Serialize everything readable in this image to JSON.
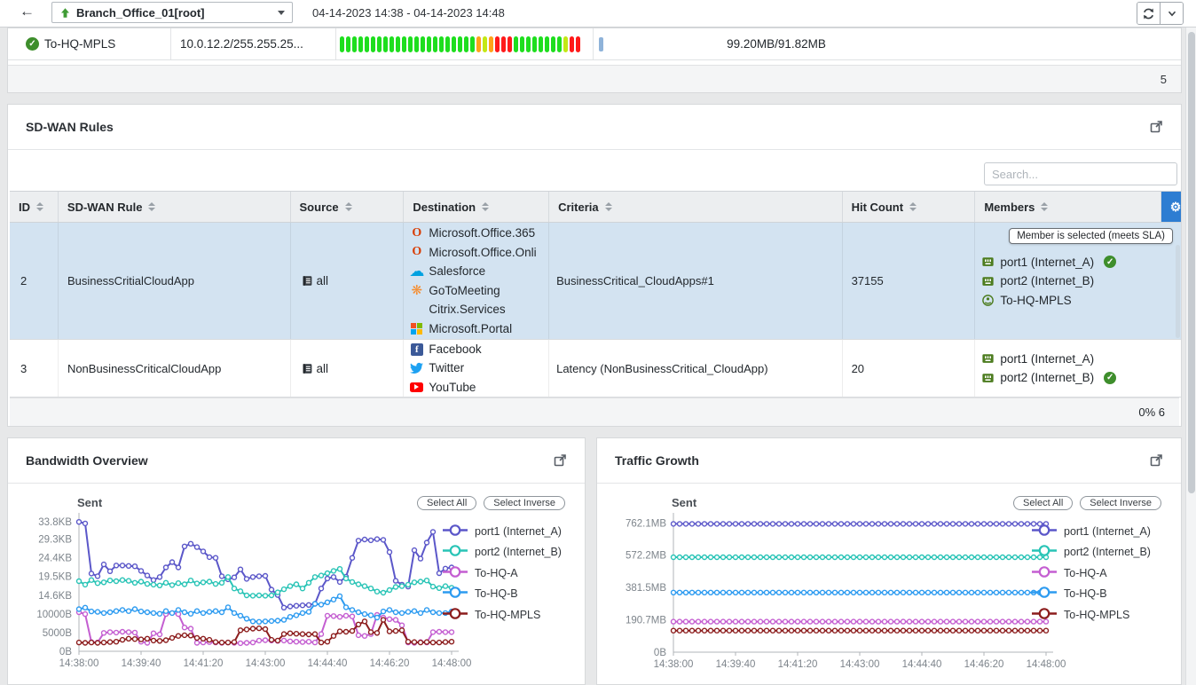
{
  "topbar": {
    "device": "Branch_Office_01[root]",
    "time_range": "04-14-2023 14:38 - 04-14-2023 14:48"
  },
  "health_row": {
    "name": "To-HQ-MPLS",
    "ip": "10.0.12.2/255.255.25...",
    "volume": "99.20MB/91.82MB",
    "count": "5",
    "segments": [
      "g",
      "g",
      "g",
      "g",
      "g",
      "g",
      "g",
      "g",
      "g",
      "g",
      "g",
      "g",
      "g",
      "g",
      "g",
      "g",
      "g",
      "g",
      "g",
      "g",
      "g",
      "g",
      "o",
      "y",
      "o",
      "r",
      "r",
      "r",
      "g",
      "g",
      "g",
      "g",
      "g",
      "g",
      "g",
      "g",
      "y",
      "r",
      "r"
    ]
  },
  "colors": {
    "accent_blue": "#2d7dd2",
    "selected_row": "#d3e3f1",
    "status_green": "#3e8e2c",
    "port_green": "#4c7c1f",
    "segment_green": "#1ede1e",
    "segment_orange": "#ffa318",
    "segment_yellow": "#c3e814",
    "segment_red": "#ff1a1a",
    "minibar_blue": "#8fb3d9"
  },
  "sdwan": {
    "title": "SD-WAN Rules",
    "search_placeholder": "Search...",
    "tooltip": "Member is selected (meets SLA)",
    "footer": "0% 6",
    "columns": [
      "ID",
      "SD-WAN Rule",
      "Source",
      "Destination",
      "Criteria",
      "Hit Count",
      "Members"
    ],
    "rows": [
      {
        "id": "2",
        "rule": "BusinessCritialCloudApp",
        "source": "all",
        "destinations": [
          {
            "icon": "office-icon",
            "label": "Microsoft.Office.365"
          },
          {
            "icon": "office-icon",
            "label": "Microsoft.Office.Onli"
          },
          {
            "icon": "salesforce-icon",
            "label": "Salesforce"
          },
          {
            "icon": "gotomeeting-icon",
            "label": "GoToMeeting"
          },
          {
            "icon": "none",
            "label": "Citrix.Services"
          },
          {
            "icon": "microsoft-icon",
            "label": "Microsoft.Portal"
          }
        ],
        "criteria": "BusinessCritical_CloudApps#1",
        "hits": "37155",
        "members": [
          {
            "icon": "port-icon",
            "label": "port1 (Internet_A)",
            "selected": true
          },
          {
            "icon": "port-icon",
            "label": "port2 (Internet_B)",
            "selected": false
          },
          {
            "icon": "tunnel-icon",
            "label": "To-HQ-MPLS",
            "selected": false
          }
        ],
        "highlighted": true
      },
      {
        "id": "3",
        "rule": "NonBusinessCriticalCloudApp",
        "source": "all",
        "destinations": [
          {
            "icon": "facebook-icon",
            "label": "Facebook"
          },
          {
            "icon": "twitter-icon",
            "label": "Twitter"
          },
          {
            "icon": "youtube-icon",
            "label": "YouTube"
          }
        ],
        "criteria": "Latency (NonBusinessCritical_CloudApp)",
        "hits": "20",
        "members": [
          {
            "icon": "port-icon",
            "label": "port1 (Internet_A)",
            "selected": false
          },
          {
            "icon": "port-icon",
            "label": "port2 (Internet_B)",
            "selected": true
          }
        ],
        "highlighted": false
      }
    ]
  },
  "chart_data": [
    {
      "type": "line",
      "panel_title": "Bandwidth Overview",
      "axis_title": "Sent",
      "buttons": [
        "Select All",
        "Select Inverse"
      ],
      "legend_position": "right",
      "grid": false,
      "x_ticks": [
        "14:38:00",
        "14:39:40",
        "14:41:20",
        "14:43:00",
        "14:44:40",
        "14:46:20",
        "14:48:00"
      ],
      "y_unit": "KB",
      "ymax": 34.3,
      "y_ticks": [
        {
          "value": 0,
          "label": "0B"
        },
        {
          "value": 4.88,
          "label": "5000B"
        },
        {
          "value": 9.77,
          "label": "10000B"
        },
        {
          "value": 14.65,
          "label": "14.6KB"
        },
        {
          "value": 19.53,
          "label": "19.5KB"
        },
        {
          "value": 24.41,
          "label": "24.4KB"
        },
        {
          "value": 29.3,
          "label": "29.3KB"
        },
        {
          "value": 33.8,
          "label": "33.8KB"
        }
      ],
      "series": [
        {
          "name": "port1 (Internet_A)",
          "color": "#5b57c9",
          "values": [
            33.8,
            33.4,
            20.3,
            19.6,
            22.7,
            20.9,
            22.4,
            22.4,
            22.3,
            22.2,
            21.0,
            19.8,
            18.6,
            19.4,
            21.9,
            23.3,
            21.9,
            27.4,
            28.1,
            27.2,
            26.1,
            24.6,
            24.4,
            19.6,
            18.8,
            19.3,
            21.4,
            18.9,
            19.4,
            19.6,
            19.7,
            16.1,
            14.7,
            11.4,
            11.7,
            11.9,
            12.0,
            12.1,
            12.4,
            16.4,
            19.0,
            19.4,
            18.1,
            19.5,
            24.4,
            28.9,
            29.2,
            29.0,
            29.3,
            29.1,
            25.9,
            18.4,
            17.4,
            16.9,
            26.4,
            24.2,
            28.4,
            31.2,
            20.4,
            21.6,
            21.9
          ]
        },
        {
          "name": "port2 (Internet_B)",
          "color": "#29c4b6",
          "values": [
            18.3,
            17.4,
            18.6,
            17.8,
            18.0,
            18.5,
            18.3,
            18.6,
            18.4,
            17.9,
            18.2,
            17.6,
            17.4,
            17.2,
            17.9,
            17.3,
            17.8,
            17.5,
            18.5,
            17.7,
            18.0,
            18.2,
            17.6,
            17.9,
            19.4,
            16.4,
            15.7,
            14.6,
            14.5,
            14.6,
            14.5,
            14.6,
            15.4,
            16.2,
            17.0,
            17.5,
            16.4,
            17.9,
            19.4,
            19.8,
            20.4,
            21.0,
            21.5,
            19.0,
            18.1,
            17.5,
            17.0,
            16.4,
            15.6,
            15.3,
            16.0,
            16.8,
            17.0,
            17.4,
            18.0,
            18.2,
            18.5,
            16.9,
            16.5,
            17.0,
            16.6
          ]
        },
        {
          "name": "To-HQ-A",
          "color": "#c45ed1",
          "values": [
            10.2,
            9.7,
            2.4,
            2.3,
            4.8,
            5.0,
            4.9,
            5.1,
            5.0,
            4.9,
            2.5,
            2.2,
            4.7,
            4.4,
            9.7,
            10.0,
            9.7,
            6.2,
            5.9,
            2.2,
            2.3,
            2.4,
            2.3,
            2.2,
            2.3,
            2.2,
            2.1,
            2.2,
            2.3,
            2.8,
            2.9,
            2.8,
            2.7,
            2.8,
            2.6,
            2.5,
            2.4,
            2.5,
            2.3,
            4.5,
            9.3,
            9.2,
            9.0,
            9.3,
            9.1,
            4.2,
            4.0,
            4.5,
            9.5,
            8.8,
            8.4,
            8.2,
            6.8,
            2.3,
            2.2,
            2.4,
            2.3,
            5.0,
            5.1,
            5.0,
            5.0
          ]
        },
        {
          "name": "To-HQ-B",
          "color": "#2d9bf0",
          "values": [
            11.0,
            11.4,
            10.4,
            10.3,
            10.0,
            10.2,
            10.5,
            10.8,
            10.5,
            11.0,
            10.4,
            10.2,
            10.0,
            9.8,
            10.5,
            10.0,
            10.8,
            10.2,
            9.8,
            10.5,
            10.0,
            10.3,
            10.5,
            10.2,
            11.5,
            10.0,
            9.3,
            8.5,
            7.8,
            7.7,
            7.8,
            7.9,
            8.0,
            8.2,
            9.0,
            9.4,
            10.0,
            10.3,
            12.4,
            12.2,
            12.8,
            13.5,
            14.4,
            11.5,
            10.8,
            10.2,
            9.7,
            9.4,
            8.8,
            10.4,
            10.8,
            10.2,
            10.0,
            10.3,
            10.5,
            10.0,
            10.8,
            10.2,
            10.0,
            10.0,
            10.4
          ]
        },
        {
          "name": "To-HQ-MPLS",
          "color": "#8c1d1d",
          "values": [
            2.3,
            2.2,
            2.3,
            2.2,
            2.3,
            2.4,
            2.5,
            3.0,
            3.3,
            3.2,
            3.1,
            3.3,
            2.8,
            2.7,
            2.9,
            3.5,
            4.0,
            4.2,
            4.1,
            3.5,
            3.3,
            3.0,
            2.4,
            2.3,
            2.3,
            2.4,
            5.5,
            5.7,
            5.9,
            6.0,
            5.8,
            3.0,
            2.8,
            4.5,
            4.7,
            4.6,
            4.5,
            4.4,
            4.5,
            2.3,
            2.5,
            4.0,
            5.2,
            5.1,
            5.3,
            7.0,
            7.8,
            5.0,
            4.8,
            8.2,
            5.2,
            5.3,
            5.5,
            2.5,
            2.4,
            2.3,
            2.4,
            2.3,
            2.3,
            2.4,
            2.5
          ]
        }
      ]
    },
    {
      "type": "line",
      "panel_title": "Traffic Growth",
      "axis_title": "Sent",
      "buttons": [
        "Select All",
        "Select Inverse"
      ],
      "legend_position": "right",
      "grid": false,
      "x_ticks": [
        "14:38:00",
        "14:39:40",
        "14:41:20",
        "14:43:00",
        "14:44:40",
        "14:46:20",
        "14:48:00"
      ],
      "y_unit": "MB",
      "ymax": 780,
      "y_ticks": [
        {
          "value": 0,
          "label": "0B"
        },
        {
          "value": 190.7,
          "label": "190.7MB"
        },
        {
          "value": 381.5,
          "label": "381.5MB"
        },
        {
          "value": 572.2,
          "label": "572.2MB"
        },
        {
          "value": 762.1,
          "label": "762.1MB"
        }
      ],
      "series": [
        {
          "name": "port1 (Internet_A)",
          "color": "#5b57c9",
          "constant": 757,
          "count": 61
        },
        {
          "name": "port2 (Internet_B)",
          "color": "#29c4b6",
          "constant": 560,
          "count": 61
        },
        {
          "name": "To-HQ-A",
          "color": "#c45ed1",
          "constant": 180,
          "count": 61
        },
        {
          "name": "To-HQ-B",
          "color": "#2d9bf0",
          "constant": 352,
          "count": 61
        },
        {
          "name": "To-HQ-MPLS",
          "color": "#8c1d1d",
          "constant": 127,
          "count": 61
        }
      ]
    }
  ]
}
